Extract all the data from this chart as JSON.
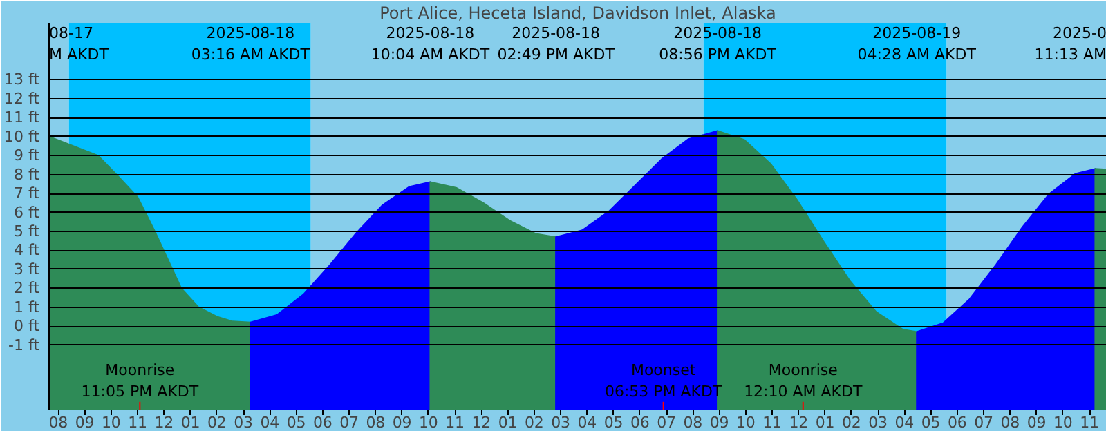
{
  "chart_data": {
    "type": "area",
    "title": "Port Alice, Heceta Island, Davidson Inlet, Alaska",
    "xlim": [
      "2025-08-17T19:39",
      "2025-08-19T11:39"
    ],
    "ylim": [
      -4.4,
      16
    ],
    "xticks": [
      {
        "value": "2025-08-17T20:00",
        "label": "08"
      },
      {
        "value": "2025-08-17T21:00",
        "label": "09"
      },
      {
        "value": "2025-08-17T22:00",
        "label": "10"
      },
      {
        "value": "2025-08-17T23:00",
        "label": "11"
      },
      {
        "value": "2025-08-18T00:00",
        "label": "12"
      },
      {
        "value": "2025-08-18T01:00",
        "label": "01"
      },
      {
        "value": "2025-08-18T02:00",
        "label": "02"
      },
      {
        "value": "2025-08-18T03:00",
        "label": "03"
      },
      {
        "value": "2025-08-18T04:00",
        "label": "04"
      },
      {
        "value": "2025-08-18T05:00",
        "label": "05"
      },
      {
        "value": "2025-08-18T06:00",
        "label": "06"
      },
      {
        "value": "2025-08-18T07:00",
        "label": "07"
      },
      {
        "value": "2025-08-18T08:00",
        "label": "08"
      },
      {
        "value": "2025-08-18T09:00",
        "label": "09"
      },
      {
        "value": "2025-08-18T10:00",
        "label": "10"
      },
      {
        "value": "2025-08-18T11:00",
        "label": "11"
      },
      {
        "value": "2025-08-18T12:00",
        "label": "12"
      },
      {
        "value": "2025-08-18T13:00",
        "label": "01"
      },
      {
        "value": "2025-08-18T14:00",
        "label": "02"
      },
      {
        "value": "2025-08-18T15:00",
        "label": "03"
      },
      {
        "value": "2025-08-18T16:00",
        "label": "04"
      },
      {
        "value": "2025-08-18T17:00",
        "label": "05"
      },
      {
        "value": "2025-08-18T18:00",
        "label": "06"
      },
      {
        "value": "2025-08-18T19:00",
        "label": "07"
      },
      {
        "value": "2025-08-18T20:00",
        "label": "08"
      },
      {
        "value": "2025-08-18T21:00",
        "label": "09"
      },
      {
        "value": "2025-08-18T22:00",
        "label": "10"
      },
      {
        "value": "2025-08-18T23:00",
        "label": "11"
      },
      {
        "value": "2025-08-19T00:00",
        "label": "12"
      },
      {
        "value": "2025-08-19T01:00",
        "label": "01"
      },
      {
        "value": "2025-08-19T02:00",
        "label": "02"
      },
      {
        "value": "2025-08-19T03:00",
        "label": "03"
      },
      {
        "value": "2025-08-19T04:00",
        "label": "04"
      },
      {
        "value": "2025-08-19T05:00",
        "label": "05"
      },
      {
        "value": "2025-08-19T06:00",
        "label": "06"
      },
      {
        "value": "2025-08-19T07:00",
        "label": "07"
      },
      {
        "value": "2025-08-19T08:00",
        "label": "08"
      },
      {
        "value": "2025-08-19T09:00",
        "label": "09"
      },
      {
        "value": "2025-08-19T10:00",
        "label": "10"
      },
      {
        "value": "2025-08-19T11:00",
        "label": "11"
      }
    ],
    "yticks": [
      {
        "value": -1,
        "label": "-1 ft"
      },
      {
        "value": 0,
        "label": "0 ft"
      },
      {
        "value": 1,
        "label": "1 ft"
      },
      {
        "value": 2,
        "label": "2 ft"
      },
      {
        "value": 3,
        "label": "3 ft"
      },
      {
        "value": 4,
        "label": "4 ft"
      },
      {
        "value": 5,
        "label": "5 ft"
      },
      {
        "value": 6,
        "label": "6 ft"
      },
      {
        "value": 7,
        "label": "7 ft"
      },
      {
        "value": 8,
        "label": "8 ft"
      },
      {
        "value": 9,
        "label": "9 ft"
      },
      {
        "value": 10,
        "label": "10 ft"
      },
      {
        "value": 11,
        "label": "11 ft"
      },
      {
        "value": 12,
        "label": "12 ft"
      },
      {
        "value": 13,
        "label": "13 ft"
      }
    ],
    "grid": "y",
    "bands": [
      {
        "axis": "x",
        "from": "2025-08-17T19:39",
        "to": "2025-08-17T20:24",
        "color": "#87ceeb"
      },
      {
        "axis": "x",
        "from": "2025-08-17T20:24",
        "to": "2025-08-18T05:33",
        "color": "#00bfff"
      },
      {
        "axis": "x",
        "from": "2025-08-18T05:33",
        "to": "2025-08-18T20:24",
        "color": "#87ceeb"
      },
      {
        "axis": "x",
        "from": "2025-08-18T20:24",
        "to": "2025-08-19T05:36",
        "color": "#00bfff"
      },
      {
        "axis": "x",
        "from": "2025-08-19T05:36",
        "to": "2025-08-19T11:39",
        "color": "#87ceeb"
      }
    ],
    "series": [
      {
        "color": "#2e8b57",
        "x": [
          "2025-08-17T19:39",
          "2025-08-17T21:30",
          "2025-08-17T22:12",
          "2025-08-17T23:00",
          "2025-08-17T23:39",
          "2025-08-18T00:39",
          "2025-08-18T01:18",
          "2025-08-18T02:00",
          "2025-08-18T02:36",
          "2025-08-18T03:16"
        ],
        "values": [
          10.0,
          9.0,
          8.0,
          6.8,
          5.0,
          2.0,
          1.0,
          0.5,
          0.25,
          0.2
        ]
      },
      {
        "color": "#0000ff",
        "x": [
          "2025-08-18T03:16",
          "2025-08-18T04:16",
          "2025-08-18T05:16",
          "2025-08-18T06:16",
          "2025-08-18T07:16",
          "2025-08-18T08:16",
          "2025-08-18T09:16",
          "2025-08-18T10:04"
        ],
        "values": [
          0.2,
          0.59,
          1.67,
          3.22,
          4.91,
          6.39,
          7.35,
          7.6
        ]
      },
      {
        "color": "#2e8b57",
        "x": [
          "2025-08-18T10:04",
          "2025-08-18T11:04",
          "2025-08-18T12:04",
          "2025-08-18T13:04",
          "2025-08-18T14:04",
          "2025-08-18T14:49"
        ],
        "values": [
          7.6,
          7.29,
          6.51,
          5.57,
          4.87,
          4.7
        ]
      },
      {
        "color": "#0000ff",
        "x": [
          "2025-08-18T14:49",
          "2025-08-18T15:49",
          "2025-08-18T16:49",
          "2025-08-18T17:49",
          "2025-08-18T18:49",
          "2025-08-18T19:49",
          "2025-08-18T20:56"
        ],
        "values": [
          4.7,
          5.06,
          6.05,
          7.42,
          8.81,
          9.86,
          10.3
        ]
      },
      {
        "color": "#2e8b57",
        "x": [
          "2025-08-18T20:56",
          "2025-08-18T21:56",
          "2025-08-18T22:56",
          "2025-08-18T23:56",
          "2025-08-19T00:56",
          "2025-08-19T01:56",
          "2025-08-19T02:56",
          "2025-08-19T03:56",
          "2025-08-19T04:28"
        ],
        "values": [
          10.3,
          9.84,
          8.57,
          6.67,
          4.49,
          2.4,
          0.75,
          -0.17,
          -0.3
        ]
      },
      {
        "color": "#0000ff",
        "x": [
          "2025-08-19T04:28",
          "2025-08-19T05:28",
          "2025-08-19T06:28",
          "2025-08-19T07:28",
          "2025-08-19T08:28",
          "2025-08-19T09:28",
          "2025-08-19T10:28",
          "2025-08-19T11:13"
        ],
        "values": [
          -0.3,
          0.16,
          1.43,
          3.25,
          5.23,
          6.96,
          8.04,
          8.3
        ]
      },
      {
        "color": "#2e8b57",
        "x": [
          "2025-08-19T11:13",
          "2025-08-19T11:26",
          "2025-08-19T11:39"
        ],
        "values": [
          8.3,
          8.29,
          8.27
        ]
      }
    ],
    "annotations": [
      "08-17\nM AKDT",
      "2025-08-18\n03:16 AM AKDT",
      "2025-08-18\n10:04 AM AKDT",
      "2025-08-18\n02:49 PM AKDT",
      "2025-08-18\n08:56 PM AKDT",
      "2025-08-19\n04:28 AM AKDT",
      "2025-0\n11:13 AM"
    ],
    "ref_lines": [
      {
        "axis": "x",
        "value": "2025-08-17T23:05",
        "label": "Moonrise\n11:05 PM AKDT",
        "color": "#ff0000"
      },
      {
        "axis": "x",
        "value": "2025-08-18T18:53",
        "label": "Moonset\n06:53 PM AKDT",
        "color": "#ff0000"
      },
      {
        "axis": "x",
        "value": "2025-08-19T00:10",
        "label": "Moonrise\n12:10 AM AKDT",
        "color": "#ff0000"
      }
    ]
  }
}
